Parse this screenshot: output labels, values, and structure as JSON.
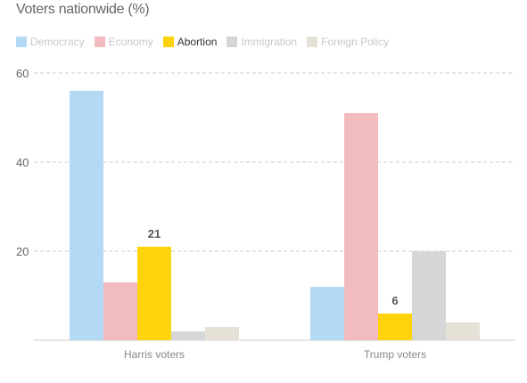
{
  "chart_data": {
    "type": "bar",
    "title": "Voters nationwide (%)",
    "categories": [
      "Harris voters",
      "Trump voters"
    ],
    "series": [
      {
        "name": "Democracy",
        "color": "#b3d9f5",
        "values": [
          56,
          12
        ]
      },
      {
        "name": "Economy",
        "color": "#f2bcbe",
        "values": [
          13,
          51
        ]
      },
      {
        "name": "Abortion",
        "color": "#ffd30b",
        "values": [
          21,
          6
        ]
      },
      {
        "name": "Immigration",
        "color": "#d6d6d6",
        "values": [
          2,
          20
        ]
      },
      {
        "name": "Foreign Policy",
        "color": "#e6e1d6",
        "values": [
          3,
          4
        ]
      }
    ],
    "highlighted_series": "Abortion",
    "data_labels": [
      {
        "series": "Abortion",
        "category": "Harris voters",
        "text": "21"
      },
      {
        "series": "Abortion",
        "category": "Trump voters",
        "text": "6"
      }
    ],
    "yticks": [
      20,
      40,
      60
    ],
    "ylim": [
      0,
      60
    ],
    "grid": true,
    "legend_position": "top-left",
    "xlabel": "",
    "ylabel": ""
  }
}
